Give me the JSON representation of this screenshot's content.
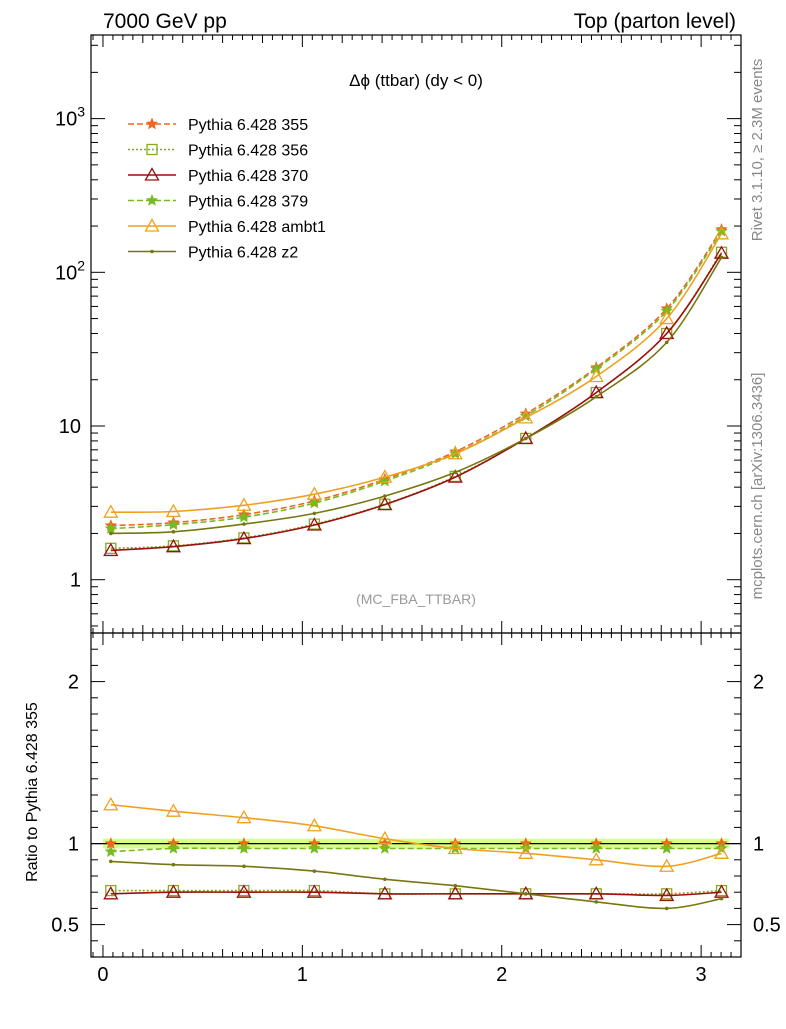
{
  "header": {
    "left": "7000 GeV pp",
    "right": "Top (parton level)"
  },
  "side_labels": {
    "rivet": "Rivet 3.1.10, ≥ 2.3M events",
    "mcplots": "mcplots.cern.ch [arXiv:1306.3436]"
  },
  "chart_data": {
    "type": "line",
    "title": "Δϕ (ttbar) (dy < 0)",
    "analysis_label": "(MC_FBA_TTBAR)",
    "x_tick_labels": [
      "0",
      "1",
      "2",
      "3"
    ],
    "xlim": [
      -0.06,
      3.2
    ],
    "main": {
      "yscale": "log",
      "ylim": [
        0.45,
        3500
      ],
      "y_tick_labels": [
        "1",
        "10",
        "10^2",
        "10^3"
      ]
    },
    "ratio": {
      "ylabel": "Ratio to Pythia 6.428 355",
      "ylim": [
        0.3,
        2.3
      ],
      "y_tick_labels": [
        "0.5",
        "1",
        "2"
      ],
      "reference_band": [
        0.97,
        1.03
      ],
      "reference_band_color": "#ccff66"
    },
    "legend_position": "top-left",
    "series": [
      {
        "name": "Pythia 6.428 355",
        "color": "#ee6622",
        "dash": "6,3",
        "marker": "star",
        "x": [
          0.0393,
          0.3534,
          0.7069,
          1.0603,
          1.4137,
          1.7671,
          2.1206,
          2.474,
          2.8274,
          3.1023
        ],
        "y": [
          2.25,
          2.35,
          2.65,
          3.25,
          4.5,
          6.8,
          12.0,
          24.0,
          58.0,
          190.0
        ]
      },
      {
        "name": "Pythia 6.428 356",
        "color": "#88aa22",
        "dash": "2,2",
        "marker": "open-square",
        "x": [
          0.0393,
          0.3534,
          0.7069,
          1.0603,
          1.4137,
          1.7671,
          2.1206,
          2.474,
          2.8274,
          3.1023
        ],
        "y": [
          1.6,
          1.66,
          1.87,
          2.3,
          3.1,
          4.7,
          8.3,
          16.5,
          40.0,
          135.0
        ]
      },
      {
        "name": "Pythia 6.428 370",
        "color": "#991111",
        "dash": "",
        "marker": "open-triangle",
        "x": [
          0.0393,
          0.3534,
          0.7069,
          1.0603,
          1.4137,
          1.7671,
          2.1206,
          2.474,
          2.8274,
          3.1023
        ],
        "y": [
          1.55,
          1.64,
          1.85,
          2.27,
          3.08,
          4.65,
          8.3,
          16.5,
          40.0,
          133.0
        ]
      },
      {
        "name": "Pythia 6.428 379",
        "color": "#77bb22",
        "dash": "6,3",
        "marker": "star",
        "x": [
          0.0393,
          0.3534,
          0.7069,
          1.0603,
          1.4137,
          1.7671,
          2.1206,
          2.474,
          2.8274,
          3.1023
        ],
        "y": [
          2.15,
          2.28,
          2.55,
          3.15,
          4.38,
          6.6,
          11.6,
          23.5,
          56.0,
          185.0
        ]
      },
      {
        "name": "Pythia 6.428 ambt1",
        "color": "#f0a020",
        "dash": "",
        "marker": "open-triangle",
        "x": [
          0.0393,
          0.3534,
          0.7069,
          1.0603,
          1.4137,
          1.7671,
          2.1206,
          2.474,
          2.8274,
          3.1023
        ],
        "y": [
          2.75,
          2.78,
          3.05,
          3.6,
          4.65,
          6.6,
          11.3,
          21.0,
          50.0,
          178.0
        ]
      },
      {
        "name": "Pythia 6.428 z2",
        "color": "#777711",
        "dash": "",
        "marker": "dot",
        "x": [
          0.0393,
          0.3534,
          0.7069,
          1.0603,
          1.4137,
          1.7671,
          2.1206,
          2.474,
          2.8274,
          3.1023
        ],
        "y": [
          2.0,
          2.05,
          2.3,
          2.7,
          3.5,
          5.0,
          8.3,
          15.5,
          35.0,
          125.0
        ]
      }
    ],
    "ratio_series": [
      {
        "name": "Pythia 6.428 356",
        "x": [
          0.0393,
          0.3534,
          0.7069,
          1.0603,
          1.4137,
          1.7671,
          2.1206,
          2.474,
          2.8274,
          3.1023
        ],
        "y": [
          0.71,
          0.71,
          0.71,
          0.71,
          0.69,
          0.69,
          0.69,
          0.69,
          0.69,
          0.71
        ]
      },
      {
        "name": "Pythia 6.428 370",
        "x": [
          0.0393,
          0.3534,
          0.7069,
          1.0603,
          1.4137,
          1.7671,
          2.1206,
          2.474,
          2.8274,
          3.1023
        ],
        "y": [
          0.69,
          0.7,
          0.7,
          0.7,
          0.69,
          0.69,
          0.69,
          0.69,
          0.68,
          0.7
        ]
      },
      {
        "name": "Pythia 6.428 379",
        "x": [
          0.0393,
          0.3534,
          0.7069,
          1.0603,
          1.4137,
          1.7671,
          2.1206,
          2.474,
          2.8274,
          3.1023
        ],
        "y": [
          0.95,
          0.97,
          0.97,
          0.97,
          0.97,
          0.97,
          0.97,
          0.97,
          0.97,
          0.97
        ]
      },
      {
        "name": "Pythia 6.428 ambt1",
        "x": [
          0.0393,
          0.3534,
          0.7069,
          1.0603,
          1.4137,
          1.7671,
          2.1206,
          2.474,
          2.8274,
          3.1023
        ],
        "y": [
          1.24,
          1.2,
          1.16,
          1.11,
          1.03,
          0.97,
          0.94,
          0.9,
          0.86,
          0.94
        ]
      },
      {
        "name": "Pythia 6.428 z2",
        "x": [
          0.0393,
          0.3534,
          0.7069,
          1.0603,
          1.4137,
          1.7671,
          2.1206,
          2.474,
          2.8274,
          3.1023
        ],
        "y": [
          0.89,
          0.87,
          0.86,
          0.83,
          0.78,
          0.74,
          0.69,
          0.64,
          0.6,
          0.66
        ]
      }
    ]
  }
}
